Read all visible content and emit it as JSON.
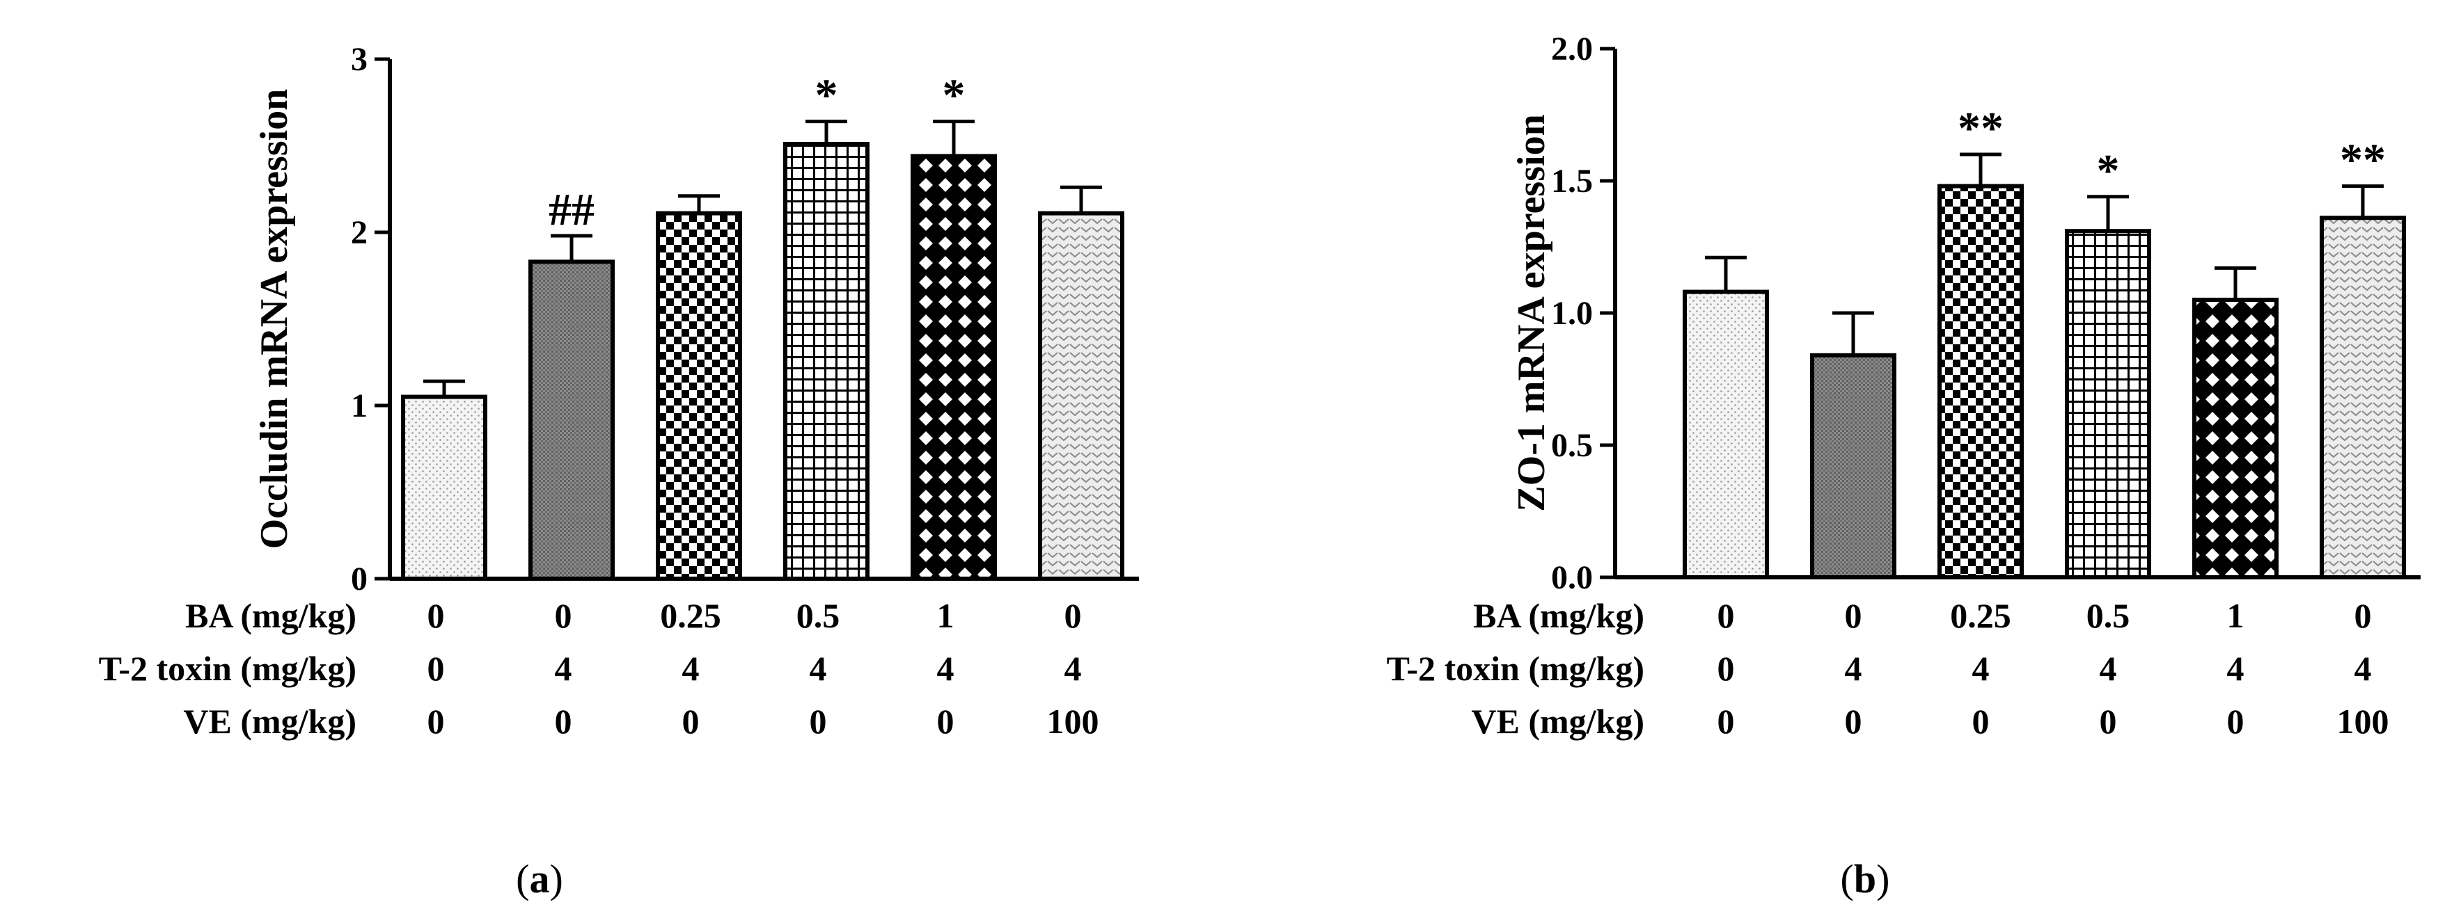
{
  "panels": [
    {
      "panel_label": "(a)",
      "panel_letter": "a",
      "chart_data": {
        "type": "bar",
        "ylabel": "Occludin mRNA expression",
        "ylim": [
          0,
          3
        ],
        "yticks": [
          0,
          1,
          2,
          3
        ],
        "ytick_labels": [
          "0",
          "1",
          "2",
          "3"
        ],
        "values": [
          1.05,
          1.83,
          2.11,
          2.51,
          2.44,
          2.11
        ],
        "errors": [
          0.09,
          0.15,
          0.1,
          0.13,
          0.2,
          0.15
        ],
        "annotations": [
          "",
          "##",
          "",
          "*",
          "*",
          ""
        ],
        "patterns": [
          "dots",
          "dense-grey",
          "checker",
          "grid",
          "diamond",
          "chevron"
        ],
        "table_rows": [
          {
            "label": "BA (mg/kg)",
            "values": [
              "0",
              "0",
              "0.25",
              "0.5",
              "1",
              "0"
            ]
          },
          {
            "label": "T-2 toxin (mg/kg)",
            "values": [
              "0",
              "4",
              "4",
              "4",
              "4",
              "4"
            ]
          },
          {
            "label": "VE (mg/kg)",
            "values": [
              "0",
              "0",
              "0",
              "0",
              "0",
              "100"
            ]
          }
        ]
      }
    },
    {
      "panel_label": "(b)",
      "panel_letter": "b",
      "chart_data": {
        "type": "bar",
        "ylabel": "ZO-1 mRNA expression",
        "ylim": [
          0,
          2
        ],
        "yticks": [
          0,
          0.5,
          1,
          1.5,
          2
        ],
        "ytick_labels": [
          "0.0",
          "0.5",
          "1.0",
          "1.5",
          "2.0"
        ],
        "values": [
          1.08,
          0.84,
          1.48,
          1.31,
          1.05,
          1.36
        ],
        "errors": [
          0.13,
          0.16,
          0.12,
          0.13,
          0.12,
          0.12
        ],
        "annotations": [
          "",
          "",
          "**",
          "*",
          "",
          "**"
        ],
        "patterns": [
          "dots",
          "dense-grey",
          "checker",
          "grid",
          "diamond",
          "chevron"
        ],
        "table_rows": [
          {
            "label": "BA (mg/kg)",
            "values": [
              "0",
              "0",
              "0.25",
              "0.5",
              "1",
              "0"
            ]
          },
          {
            "label": "T-2 toxin (mg/kg)",
            "values": [
              "0",
              "4",
              "4",
              "4",
              "4",
              "4"
            ]
          },
          {
            "label": "VE (mg/kg)",
            "values": [
              "0",
              "0",
              "0",
              "0",
              "0",
              "100"
            ]
          }
        ]
      }
    }
  ],
  "colors": {
    "axis": "#000000",
    "bar_stroke": "#000000",
    "background": "#ffffff"
  }
}
